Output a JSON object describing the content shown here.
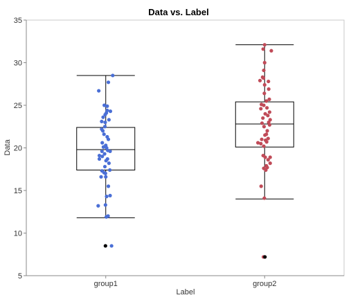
{
  "chart_data": {
    "type": "box",
    "title": "Data vs. Label",
    "xlabel": "Label",
    "ylabel": "Data",
    "categories": [
      "group1",
      "group2"
    ],
    "ylim": [
      5,
      35
    ],
    "yticks": [
      5,
      10,
      15,
      20,
      25,
      30,
      35
    ],
    "grid": false,
    "legend": "none",
    "series": [
      {
        "category": "group1",
        "color": "#4A6FD6",
        "box": {
          "whisker_low": 11.8,
          "q1": 17.4,
          "median": 19.8,
          "q3": 22.4,
          "whisker_high": 28.5
        },
        "outliers": [
          8.5
        ],
        "points": [
          {
            "j": 0.24,
            "y": 28.5
          },
          {
            "j": 0.09,
            "y": 27.7
          },
          {
            "j": -0.24,
            "y": 26.7
          },
          {
            "j": -0.05,
            "y": 25.0
          },
          {
            "j": 0.05,
            "y": 24.9
          },
          {
            "j": 0.16,
            "y": 24.3
          },
          {
            "j": 0.02,
            "y": 24.1
          },
          {
            "j": 0.05,
            "y": 24.4
          },
          {
            "j": -0.02,
            "y": 23.9
          },
          {
            "j": -0.09,
            "y": 23.6
          },
          {
            "j": -0.14,
            "y": 23.1
          },
          {
            "j": 0.11,
            "y": 23.3
          },
          {
            "j": -0.02,
            "y": 23.0
          },
          {
            "j": -0.03,
            "y": 22.5
          },
          {
            "j": -0.14,
            "y": 22.2
          },
          {
            "j": -0.1,
            "y": 22.0
          },
          {
            "j": -0.06,
            "y": 21.6
          },
          {
            "j": 0.05,
            "y": 21.3
          },
          {
            "j": 0.09,
            "y": 21.0
          },
          {
            "j": -0.12,
            "y": 20.6
          },
          {
            "j": 0.0,
            "y": 20.3
          },
          {
            "j": -0.08,
            "y": 20.1
          },
          {
            "j": 0.03,
            "y": 20.0
          },
          {
            "j": 0.07,
            "y": 19.7
          },
          {
            "j": -0.13,
            "y": 19.6
          },
          {
            "j": 0.15,
            "y": 19.6
          },
          {
            "j": -0.04,
            "y": 19.3
          },
          {
            "j": -0.22,
            "y": 19.1
          },
          {
            "j": -0.12,
            "y": 19.0
          },
          {
            "j": -0.22,
            "y": 18.7
          },
          {
            "j": 0.06,
            "y": 18.7
          },
          {
            "j": 0.01,
            "y": 18.5
          },
          {
            "j": 0.11,
            "y": 18.2
          },
          {
            "j": -0.03,
            "y": 17.8
          },
          {
            "j": -0.13,
            "y": 17.3
          },
          {
            "j": -0.06,
            "y": 17.1
          },
          {
            "j": 0.14,
            "y": 17.4
          },
          {
            "j": -0.01,
            "y": 17.0
          },
          {
            "j": -0.16,
            "y": 16.6
          },
          {
            "j": 0.0,
            "y": 16.6
          },
          {
            "j": 0.09,
            "y": 15.5
          },
          {
            "j": 0.03,
            "y": 14.3
          },
          {
            "j": 0.15,
            "y": 14.4
          },
          {
            "j": -0.01,
            "y": 13.3
          },
          {
            "j": -0.26,
            "y": 13.2
          },
          {
            "j": 0.02,
            "y": 11.9
          },
          {
            "j": 0.08,
            "y": 12.0
          },
          {
            "j": 0.2,
            "y": 8.5
          }
        ]
      },
      {
        "category": "group2",
        "color": "#C04B58",
        "box": {
          "whisker_low": 14.0,
          "q1": 20.1,
          "median": 22.8,
          "q3": 25.4,
          "whisker_high": 32.1
        },
        "outliers": [
          7.2
        ],
        "points": [
          {
            "j": 0.0,
            "y": 32.1
          },
          {
            "j": -0.05,
            "y": 31.6
          },
          {
            "j": 0.23,
            "y": 31.4
          },
          {
            "j": 0.0,
            "y": 30.0
          },
          {
            "j": -0.03,
            "y": 29.1
          },
          {
            "j": -0.07,
            "y": 28.3
          },
          {
            "j": -0.04,
            "y": 28.2
          },
          {
            "j": -0.16,
            "y": 27.9
          },
          {
            "j": 0.13,
            "y": 27.8
          },
          {
            "j": 0.0,
            "y": 27.4
          },
          {
            "j": 0.14,
            "y": 26.9
          },
          {
            "j": -0.01,
            "y": 26.4
          },
          {
            "j": 0.16,
            "y": 25.7
          },
          {
            "j": 0.06,
            "y": 25.5
          },
          {
            "j": -0.11,
            "y": 25.1
          },
          {
            "j": -0.03,
            "y": 25.0
          },
          {
            "j": 0.08,
            "y": 24.7
          },
          {
            "j": -0.13,
            "y": 24.6
          },
          {
            "j": 0.17,
            "y": 24.2
          },
          {
            "j": 0.02,
            "y": 24.0
          },
          {
            "j": 0.11,
            "y": 23.8
          },
          {
            "j": -0.06,
            "y": 23.5
          },
          {
            "j": 0.19,
            "y": 23.3
          },
          {
            "j": 0.14,
            "y": 23.0
          },
          {
            "j": -0.09,
            "y": 22.9
          },
          {
            "j": 0.17,
            "y": 22.7
          },
          {
            "j": -0.02,
            "y": 22.5
          },
          {
            "j": 0.09,
            "y": 22.0
          },
          {
            "j": 0.06,
            "y": 21.6
          },
          {
            "j": 0.01,
            "y": 21.5
          },
          {
            "j": -0.1,
            "y": 21.0
          },
          {
            "j": 0.12,
            "y": 21.1
          },
          {
            "j": 0.03,
            "y": 20.9
          },
          {
            "j": -0.23,
            "y": 20.6
          },
          {
            "j": -0.13,
            "y": 20.5
          },
          {
            "j": 0.07,
            "y": 20.7
          },
          {
            "j": -0.03,
            "y": 20.2
          },
          {
            "j": -0.05,
            "y": 19.1
          },
          {
            "j": 0.02,
            "y": 18.9
          },
          {
            "j": 0.19,
            "y": 18.9
          },
          {
            "j": 0.12,
            "y": 18.6
          },
          {
            "j": 0.19,
            "y": 18.2
          },
          {
            "j": 0.06,
            "y": 17.9
          },
          {
            "j": -0.03,
            "y": 17.6
          },
          {
            "j": 0.09,
            "y": 17.7
          },
          {
            "j": 0.04,
            "y": 17.4
          },
          {
            "j": -0.12,
            "y": 15.5
          },
          {
            "j": -0.01,
            "y": 14.1
          },
          {
            "j": -0.04,
            "y": 7.2
          }
        ]
      }
    ]
  }
}
